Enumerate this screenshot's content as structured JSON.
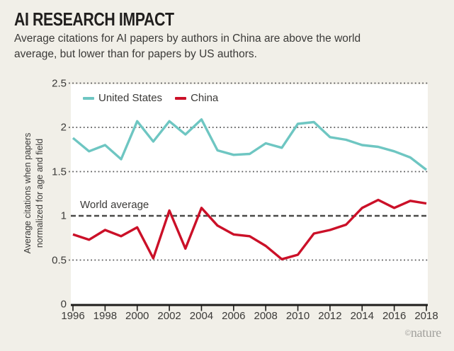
{
  "header": {
    "title": "AI RESEARCH IMPACT",
    "subtitle": "Average citations for AI papers by authors in China are above the world average, but lower than for papers by US authors."
  },
  "legend": {
    "items": [
      {
        "label": "United States",
        "color": "#6ec6c2"
      },
      {
        "label": "China",
        "color": "#cb1028"
      }
    ]
  },
  "chart_data": {
    "type": "line",
    "title": "AI RESEARCH IMPACT",
    "x": [
      1996,
      1997,
      1998,
      1999,
      2000,
      2001,
      2002,
      2003,
      2004,
      2005,
      2006,
      2007,
      2008,
      2009,
      2010,
      2011,
      2012,
      2013,
      2014,
      2015,
      2016,
      2017,
      2018
    ],
    "series": [
      {
        "name": "United States",
        "color": "#6ec6c2",
        "values": [
          1.88,
          1.73,
          1.8,
          1.64,
          2.07,
          1.84,
          2.07,
          1.92,
          2.09,
          1.74,
          1.69,
          1.7,
          1.82,
          1.77,
          2.04,
          2.06,
          1.89,
          1.86,
          1.8,
          1.78,
          1.73,
          1.66,
          1.52
        ]
      },
      {
        "name": "China",
        "color": "#cb1028",
        "values": [
          0.79,
          0.73,
          0.84,
          0.77,
          0.87,
          0.52,
          1.06,
          0.63,
          1.09,
          0.89,
          0.79,
          0.77,
          0.66,
          0.51,
          0.56,
          0.8,
          0.84,
          0.9,
          1.09,
          1.18,
          1.09,
          1.17,
          1.14
        ]
      }
    ],
    "xlabel": "",
    "ylabel": "Average citations when papers normalized for age and field",
    "ylabel_lines": [
      "Average citations when papers",
      "normalized for age and field"
    ],
    "ylim": [
      0,
      2.5
    ],
    "y_ticks": [
      0,
      0.5,
      1,
      1.5,
      2,
      2.5
    ],
    "y_tick_labels": [
      "0",
      "0.5",
      "1",
      "1.5",
      "2",
      "2.5"
    ],
    "x_tick_labels": [
      "1996",
      "1998",
      "2000",
      "2002",
      "2004",
      "2006",
      "2008",
      "2010",
      "2012",
      "2014",
      "2016",
      "2018"
    ],
    "grid": "horizontal dotted",
    "legend_position": "top-left inside plot",
    "reference_line": {
      "value": 1,
      "label": "World average",
      "style": "dashed"
    }
  },
  "credit": {
    "symbol": "©",
    "text": "nature"
  },
  "colors": {
    "background": "#f1efe8",
    "plot_background": "#ffffff",
    "us_line": "#6ec6c2",
    "china_line": "#cb1028",
    "gridline": "#59595a",
    "reference_line": "#4a4a48",
    "axis": "#1e1d1b",
    "text": "#3b3a38",
    "title": "#211f1e",
    "credit": "#a2a19d"
  }
}
